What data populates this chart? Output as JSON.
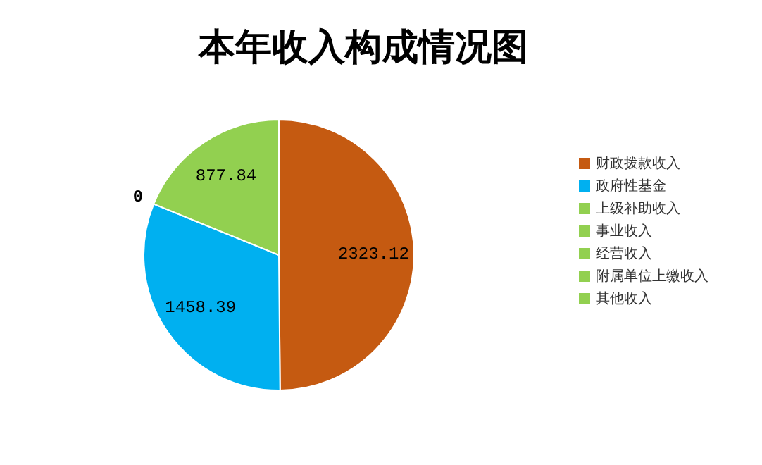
{
  "chart_data": {
    "type": "pie",
    "title": "本年收入构成情况图",
    "categories": [
      "财政拨款收入",
      "政府性基金",
      "上级补助收入",
      "事业收入",
      "经营收入",
      "附属单位上缴收入",
      "其他收入"
    ],
    "values": [
      2323.12,
      1458.39,
      0,
      0,
      0,
      0,
      877.84
    ],
    "colors": [
      "#c55a11",
      "#00b0f0",
      "#92d050",
      "#92d050",
      "#92d050",
      "#92d050",
      "#92d050"
    ],
    "value_labels": [
      "2323.12",
      "1458.39",
      "0",
      null,
      null,
      null,
      "877.84"
    ],
    "legend": "right"
  }
}
